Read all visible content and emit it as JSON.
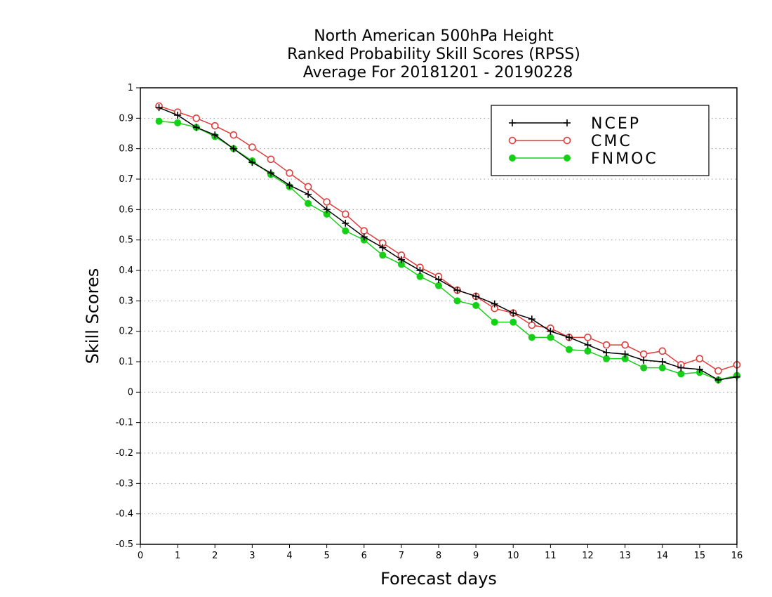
{
  "chart_data": {
    "type": "line",
    "title": [
      "North American 500hPa Height",
      "Ranked Probability Skill Scores (RPSS)",
      "Average For 20181201 - 20190228"
    ],
    "xlabel": "Forecast days",
    "ylabel": "Skill Scores",
    "xlim": [
      0,
      16
    ],
    "ylim": [
      -0.5,
      1
    ],
    "x_ticks": [
      0,
      1,
      2,
      3,
      4,
      5,
      6,
      7,
      8,
      9,
      10,
      11,
      12,
      13,
      14,
      15,
      16
    ],
    "y_ticks": [
      -0.5,
      -0.4,
      -0.3,
      -0.2,
      -0.1,
      0,
      0.1,
      0.2,
      0.3,
      0.4,
      0.5,
      0.6,
      0.7,
      0.8,
      0.9,
      1
    ],
    "y_tick_labels": [
      "-0.5",
      "-0.4",
      "-0.3",
      "-0.2",
      "-0.1",
      "0",
      "0.1",
      "0.2",
      "0.3",
      "0.4",
      "0.5",
      "0.6",
      "0.7",
      "0.8",
      "0.9",
      "1"
    ],
    "grid": "horizontal dotted",
    "legend_position": "top-right",
    "x": [
      0.5,
      1.0,
      1.5,
      2.0,
      2.5,
      3.0,
      3.5,
      4.0,
      4.5,
      5.0,
      5.5,
      6.0,
      6.5,
      7.0,
      7.5,
      8.0,
      8.5,
      9.0,
      9.5,
      10.0,
      10.5,
      11.0,
      11.5,
      12.0,
      12.5,
      13.0,
      13.5,
      14.0,
      14.5,
      15.0,
      15.5,
      16.0
    ],
    "series": [
      {
        "name": "NCEP",
        "color": "#000000",
        "marker": "plus",
        "values": [
          0.935,
          0.91,
          0.87,
          0.845,
          0.8,
          0.755,
          0.72,
          0.68,
          0.65,
          0.6,
          0.555,
          0.51,
          0.475,
          0.435,
          0.4,
          0.37,
          0.335,
          0.315,
          0.29,
          0.26,
          0.24,
          0.2,
          0.18,
          0.155,
          0.13,
          0.125,
          0.105,
          0.1,
          0.08,
          0.075,
          0.04,
          0.05
        ]
      },
      {
        "name": "CMC",
        "color": "#e03c3c",
        "marker": "open-circle",
        "values": [
          0.94,
          0.92,
          0.9,
          0.875,
          0.845,
          0.805,
          0.765,
          0.72,
          0.675,
          0.625,
          0.585,
          0.53,
          0.49,
          0.45,
          0.41,
          0.38,
          0.335,
          0.315,
          0.275,
          0.26,
          0.22,
          0.21,
          0.18,
          0.18,
          0.155,
          0.155,
          0.125,
          0.135,
          0.09,
          0.11,
          0.07,
          0.09
        ]
      },
      {
        "name": "FNMOC",
        "color": "#16d016",
        "marker": "filled-circle",
        "values": [
          0.89,
          0.885,
          0.87,
          0.84,
          0.8,
          0.76,
          0.715,
          0.675,
          0.62,
          0.585,
          0.53,
          0.5,
          0.45,
          0.42,
          0.38,
          0.35,
          0.3,
          0.285,
          0.23,
          0.23,
          0.18,
          0.18,
          0.14,
          0.135,
          0.11,
          0.11,
          0.08,
          0.08,
          0.06,
          0.065,
          0.04,
          0.055
        ]
      }
    ]
  }
}
